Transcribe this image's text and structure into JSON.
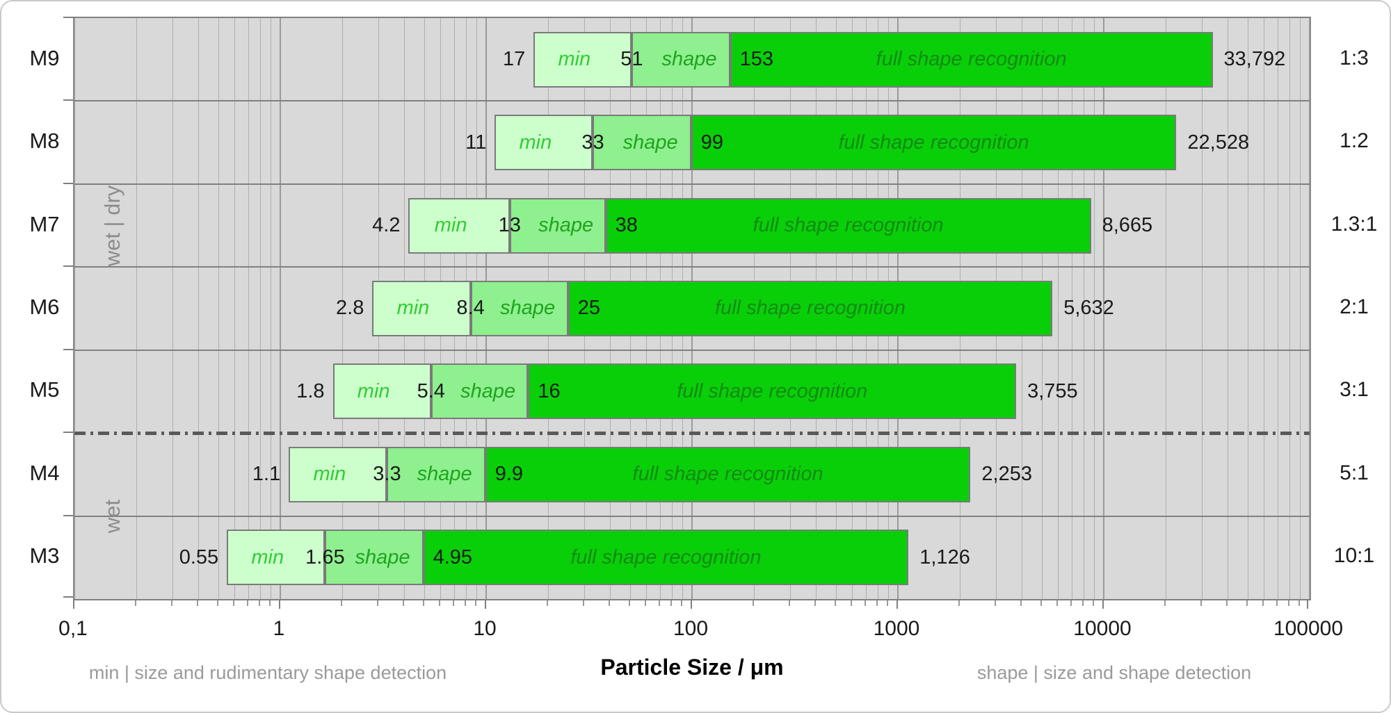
{
  "chart_data": {
    "type": "bar",
    "orientation": "horizontal-range",
    "x_scale": "log",
    "x_min": 0.1,
    "x_max": 100000,
    "xlabel": "Particle Size / μm",
    "x_ticks": [
      {
        "value": 0.1,
        "label": "0,1"
      },
      {
        "value": 1,
        "label": "1"
      },
      {
        "value": 10,
        "label": "10"
      },
      {
        "value": 100,
        "label": "100"
      },
      {
        "value": 1000,
        "label": "1000"
      },
      {
        "value": 10000,
        "label": "10000"
      },
      {
        "value": 100000,
        "label": "100000"
      }
    ],
    "segments": {
      "min_label": "min",
      "shape_label": "shape",
      "full_label": "full shape recognition"
    },
    "rows": [
      {
        "module": "M9",
        "ratio": "1:3",
        "start": 17,
        "start_label": "17",
        "min_end": 51,
        "min_end_label": "51",
        "shape_end": 153,
        "shape_end_label": "153",
        "end": 33792,
        "end_label": "33,792"
      },
      {
        "module": "M8",
        "ratio": "1:2",
        "start": 11,
        "start_label": "11",
        "min_end": 33,
        "min_end_label": "33",
        "shape_end": 99,
        "shape_end_label": "99",
        "end": 22528,
        "end_label": "22,528"
      },
      {
        "module": "M7",
        "ratio": "1.3:1",
        "start": 4.2,
        "start_label": "4.2",
        "min_end": 13,
        "min_end_label": "13",
        "shape_end": 38,
        "shape_end_label": "38",
        "end": 8665,
        "end_label": "8,665"
      },
      {
        "module": "M6",
        "ratio": "2:1",
        "start": 2.8,
        "start_label": "2.8",
        "min_end": 8.4,
        "min_end_label": "8.4",
        "shape_end": 25,
        "shape_end_label": "25",
        "end": 5632,
        "end_label": "5,632"
      },
      {
        "module": "M5",
        "ratio": "3:1",
        "start": 1.8,
        "start_label": "1.8",
        "min_end": 5.4,
        "min_end_label": "5.4",
        "shape_end": 16,
        "shape_end_label": "16",
        "end": 3755,
        "end_label": "3,755"
      },
      {
        "module": "M4",
        "ratio": "5:1",
        "start": 1.1,
        "start_label": "1.1",
        "min_end": 3.3,
        "min_end_label": "3.3",
        "shape_end": 9.9,
        "shape_end_label": "9.9",
        "end": 2253,
        "end_label": "2,253"
      },
      {
        "module": "M3",
        "ratio": "10:1",
        "start": 0.55,
        "start_label": "0.55",
        "min_end": 1.65,
        "min_end_label": "1.65",
        "shape_end": 4.95,
        "shape_end_label": "4.95",
        "end": 1126,
        "end_label": "1,126"
      }
    ],
    "group_labels": [
      {
        "text": "wet | dry",
        "row_span": [
          0,
          4
        ]
      },
      {
        "text": "wet",
        "row_span": [
          5,
          6
        ]
      }
    ],
    "divider_after_row_index": 4,
    "captions": {
      "left": "min | size and rudimentary shape detection",
      "right": "shape | size and shape detection"
    },
    "colors": {
      "min_fill": "#ccffcc",
      "shape_fill": "#8ef08e",
      "full_fill": "#09cf09",
      "min_text": "#33cc33",
      "shape_text": "#1fa41f",
      "full_text": "#128a12",
      "plot_bg": "#d9d9d9",
      "grid_major": "#9a9a9a",
      "grid_minor": "#aeaeae",
      "row_line": "#808080",
      "divider": "#595959",
      "tick": "#7f7f7f",
      "label_text": "#1a1a1a",
      "muted_text": "#9a9a9a"
    }
  }
}
